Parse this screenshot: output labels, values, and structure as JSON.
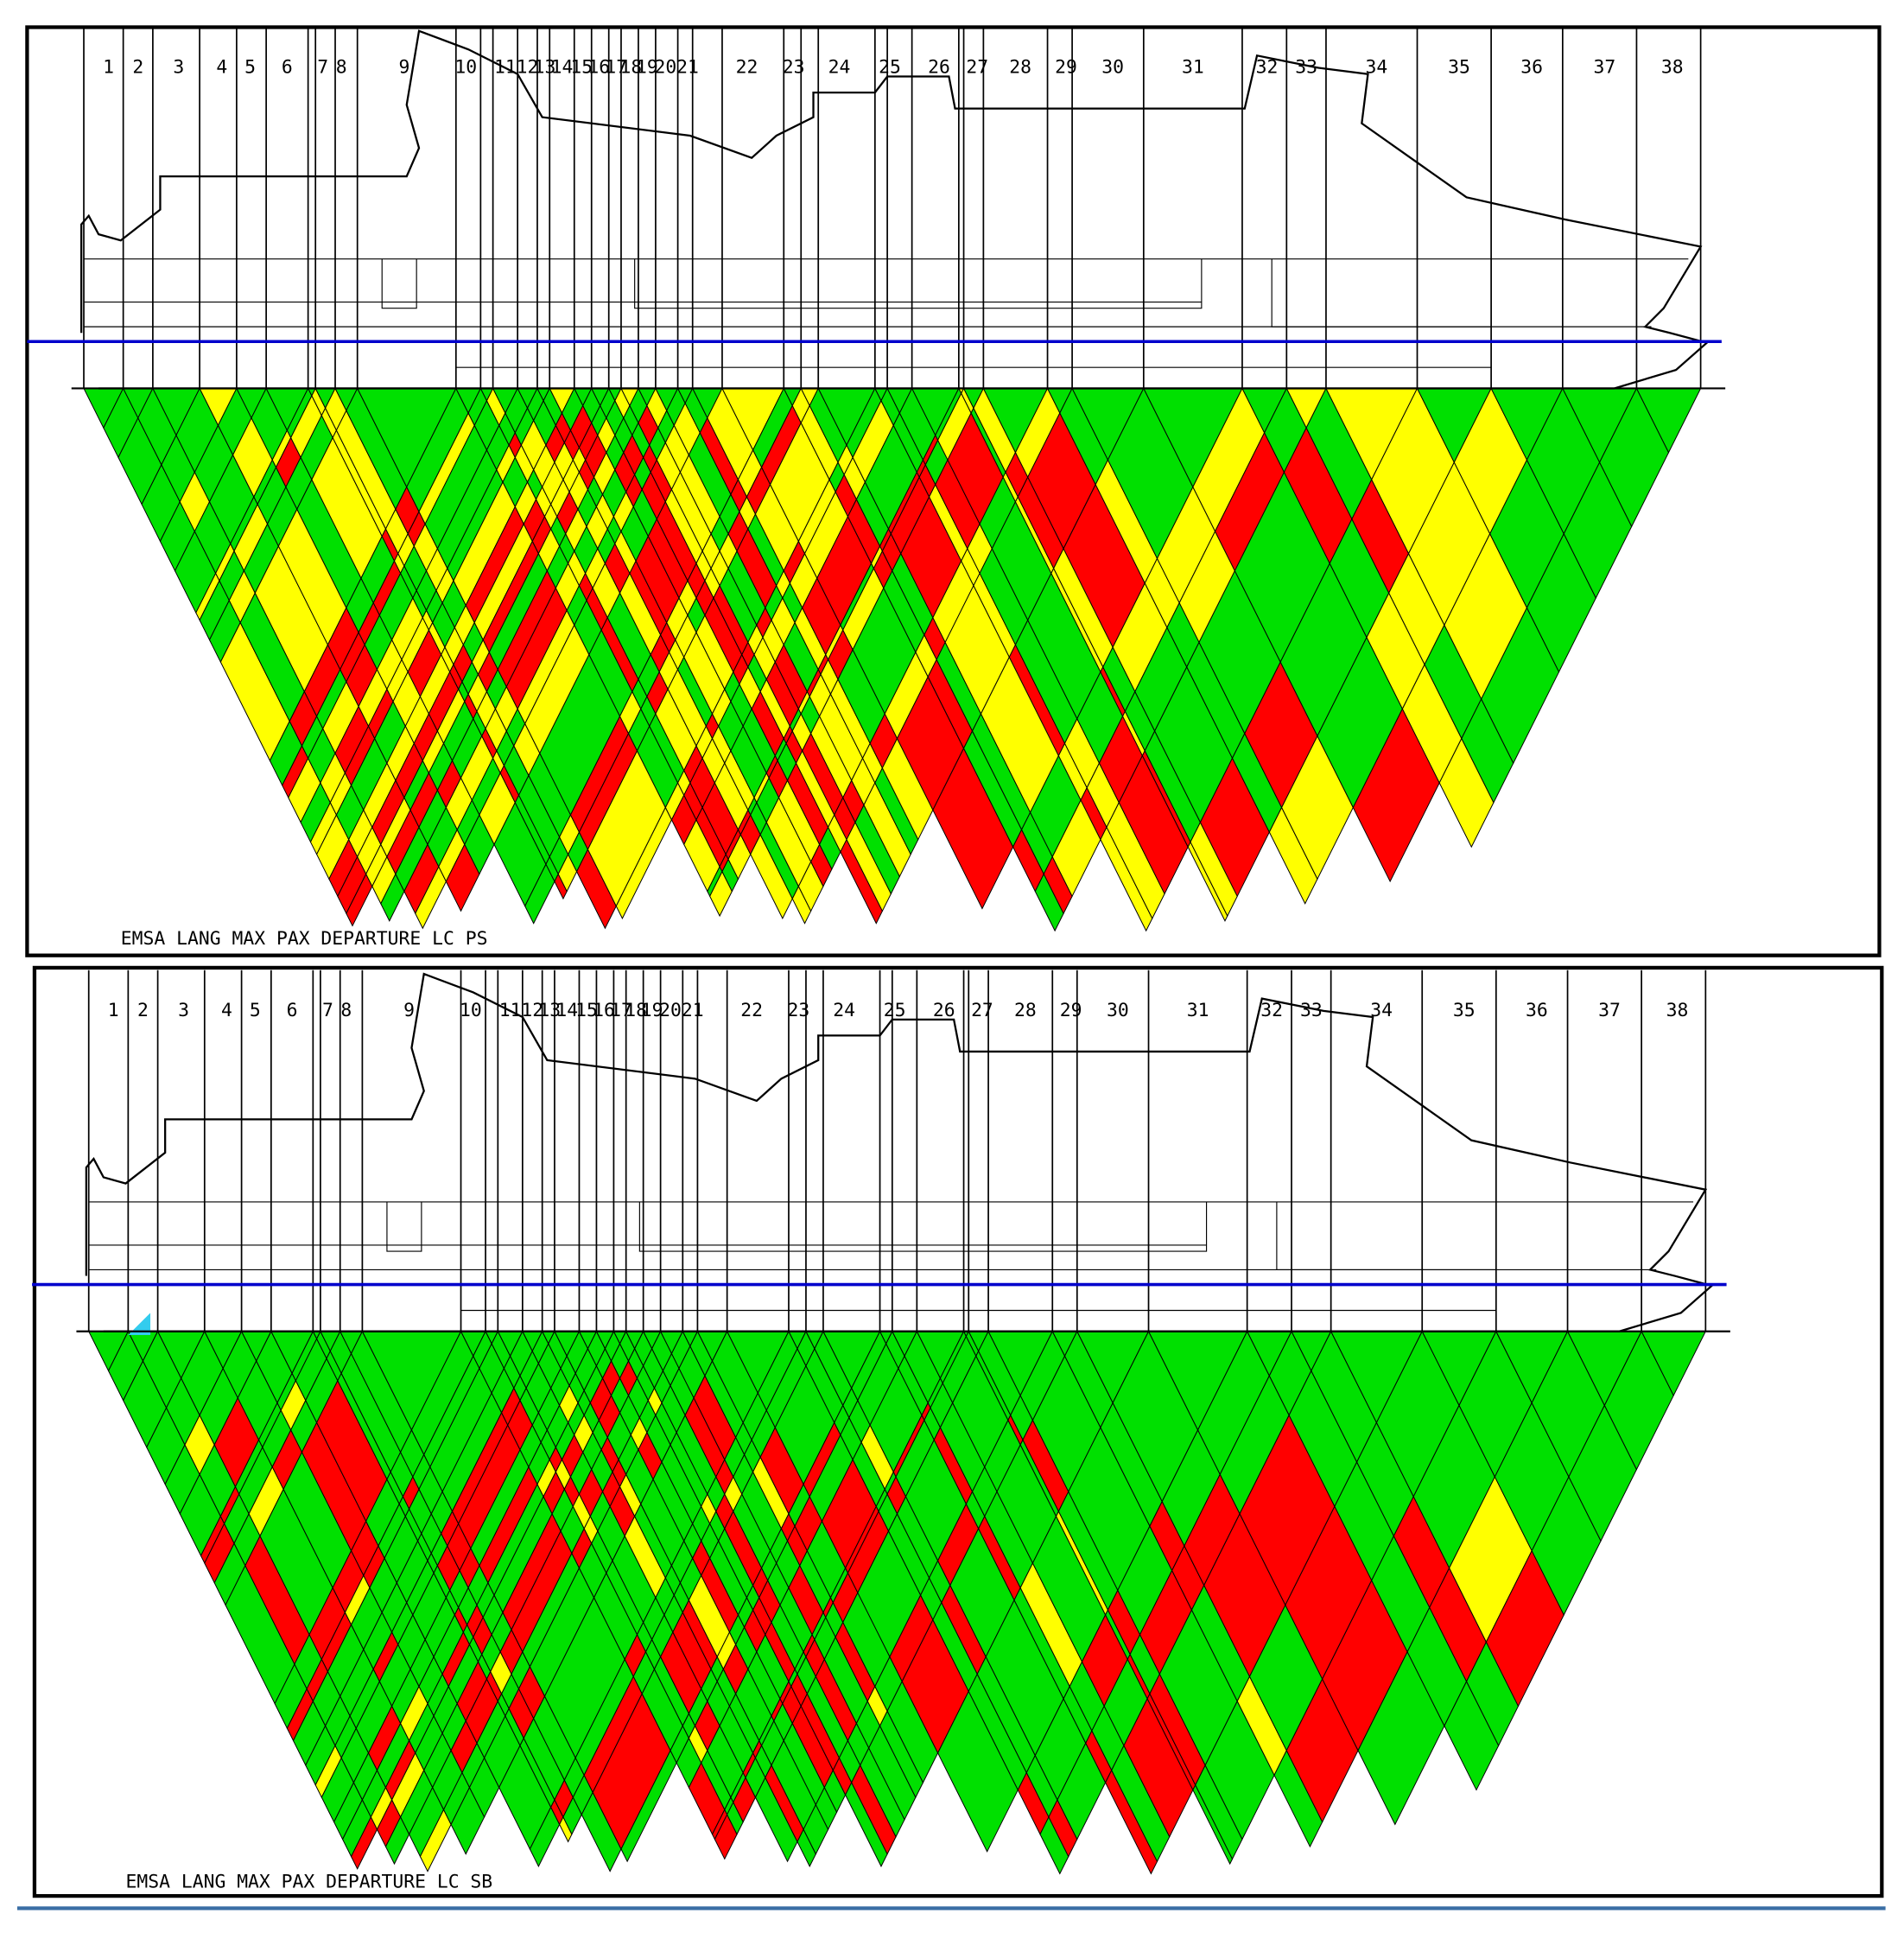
{
  "panels": [
    {
      "zones": [
        "1",
        "2",
        "3",
        "4",
        "5",
        "6",
        "7",
        "8",
        "9",
        "10",
        "11",
        "12",
        "13",
        "14",
        "15",
        "16",
        "17",
        "18",
        "19",
        "20",
        "21",
        "22",
        "23",
        "24",
        "25",
        "26",
        "27",
        "28",
        "29",
        "30",
        "31",
        "32",
        "33",
        "34",
        "35",
        "36",
        "37",
        "38"
      ],
      "caption": "EMSA LANG MAX PAX DEPARTURE LC PS"
    },
    {
      "zones": [
        "1",
        "2",
        "3",
        "4",
        "5",
        "6",
        "7",
        "8",
        "9",
        "10",
        "11",
        "12",
        "13",
        "14",
        "15",
        "16",
        "17",
        "18",
        "19",
        "20",
        "21",
        "22",
        "23",
        "24",
        "25",
        "26",
        "27",
        "28",
        "29",
        "30",
        "31",
        "32",
        "33",
        "34",
        "35",
        "36",
        "37",
        "38"
      ],
      "caption": "EMSA LANG MAX PAX DEPARTURE LC SB"
    }
  ]
}
